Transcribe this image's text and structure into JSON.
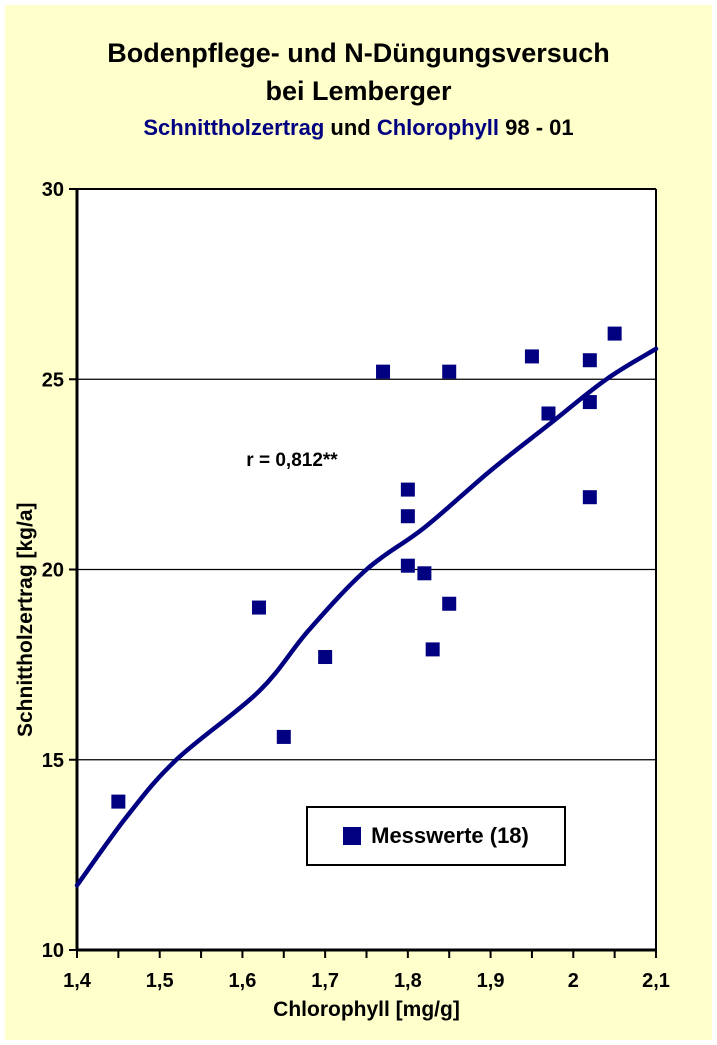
{
  "page": {
    "background_color": "#FFFFCC",
    "accent_color": "#000080"
  },
  "header": {
    "title_line1": "Bodenpflege- und N-Düngungsversuch",
    "title_line2": "bei Lemberger",
    "subtitle_parts": [
      {
        "text": "Schnittholzertrag",
        "color": "navy"
      },
      {
        "text": " und ",
        "color": "black"
      },
      {
        "text": "Chlorophyll",
        "color": "navy"
      },
      {
        "text": " 98 - 01",
        "color": "black"
      }
    ]
  },
  "chart_data": {
    "type": "scatter",
    "title": "Bodenpflege- und N-Düngungsversuch bei Lemberger",
    "subtitle": "Schnittholzertrag und Chlorophyll 98 - 01",
    "xlabel": "Chlorophyll [mg/g]",
    "ylabel": "Schnittholzertrag [kg/a]",
    "xlim": [
      1.4,
      2.1
    ],
    "ylim": [
      10,
      30
    ],
    "x_major_ticks": [
      1.4,
      1.5,
      1.6,
      1.7,
      1.8,
      1.9,
      2.0,
      2.1
    ],
    "x_tick_labels": [
      "1,4",
      "1,5",
      "1,6",
      "1,7",
      "1,8",
      "1,9",
      "2",
      "2,1"
    ],
    "x_minor_tick_step": 0.05,
    "y_ticks": [
      10,
      15,
      20,
      25,
      30
    ],
    "y_tick_labels": [
      "10",
      "15",
      "20",
      "25",
      "30"
    ],
    "gridlines_y": [
      15,
      20,
      25
    ],
    "grid": "horizontal-only",
    "annotation": "r = 0,812**",
    "legend": {
      "label": "Messwerte (18)",
      "position": "bottom-right-inside"
    },
    "marker_color": "#000080",
    "line_color": "#000080",
    "plot_background": "#ffffff",
    "series": [
      {
        "name": "Messwerte (18)",
        "type": "scatter",
        "marker": "square",
        "points": [
          [
            1.45,
            13.9
          ],
          [
            1.62,
            19.0
          ],
          [
            1.65,
            15.6
          ],
          [
            1.7,
            17.7
          ],
          [
            1.77,
            25.2
          ],
          [
            1.8,
            22.1
          ],
          [
            1.8,
            21.4
          ],
          [
            1.8,
            20.1
          ],
          [
            1.82,
            19.9
          ],
          [
            1.83,
            17.9
          ],
          [
            1.85,
            19.1
          ],
          [
            1.85,
            25.2
          ],
          [
            1.95,
            25.6
          ],
          [
            1.97,
            24.1
          ],
          [
            2.02,
            25.5
          ],
          [
            2.02,
            24.4
          ],
          [
            2.02,
            21.9
          ],
          [
            2.05,
            26.2
          ]
        ]
      },
      {
        "name": "Trendlinie",
        "type": "line",
        "points": [
          [
            1.4,
            11.7
          ],
          [
            1.46,
            13.5
          ],
          [
            1.52,
            15.0
          ],
          [
            1.62,
            16.8
          ],
          [
            1.68,
            18.4
          ],
          [
            1.75,
            20.0
          ],
          [
            1.82,
            21.1
          ],
          [
            1.9,
            22.6
          ],
          [
            1.97,
            23.8
          ],
          [
            2.04,
            25.0
          ],
          [
            2.1,
            25.8
          ]
        ]
      }
    ]
  }
}
